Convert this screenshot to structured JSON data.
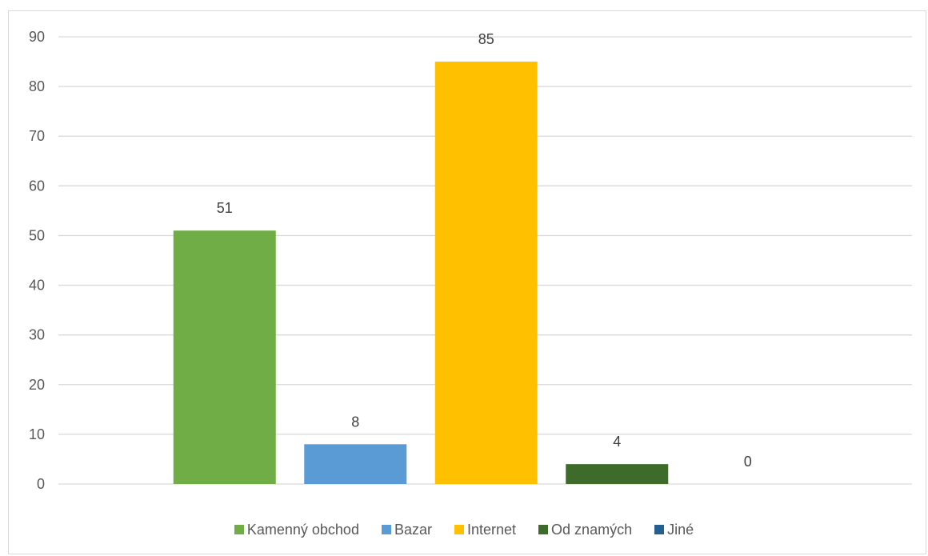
{
  "chart_data": {
    "type": "bar",
    "categories": [
      "Kamenný obchod",
      "Bazar",
      "Internet",
      "Od znamých",
      "Jiné"
    ],
    "values": [
      51,
      8,
      85,
      4,
      0
    ],
    "colors": [
      "#70ad47",
      "#5b9bd5",
      "#ffc000",
      "#3f6b2a",
      "#255e91"
    ],
    "ylim": [
      0,
      90
    ],
    "yticks": [
      0,
      10,
      20,
      30,
      40,
      50,
      60,
      70,
      80,
      90
    ],
    "grid": true,
    "legend_position": "bottom",
    "data_labels": true
  }
}
